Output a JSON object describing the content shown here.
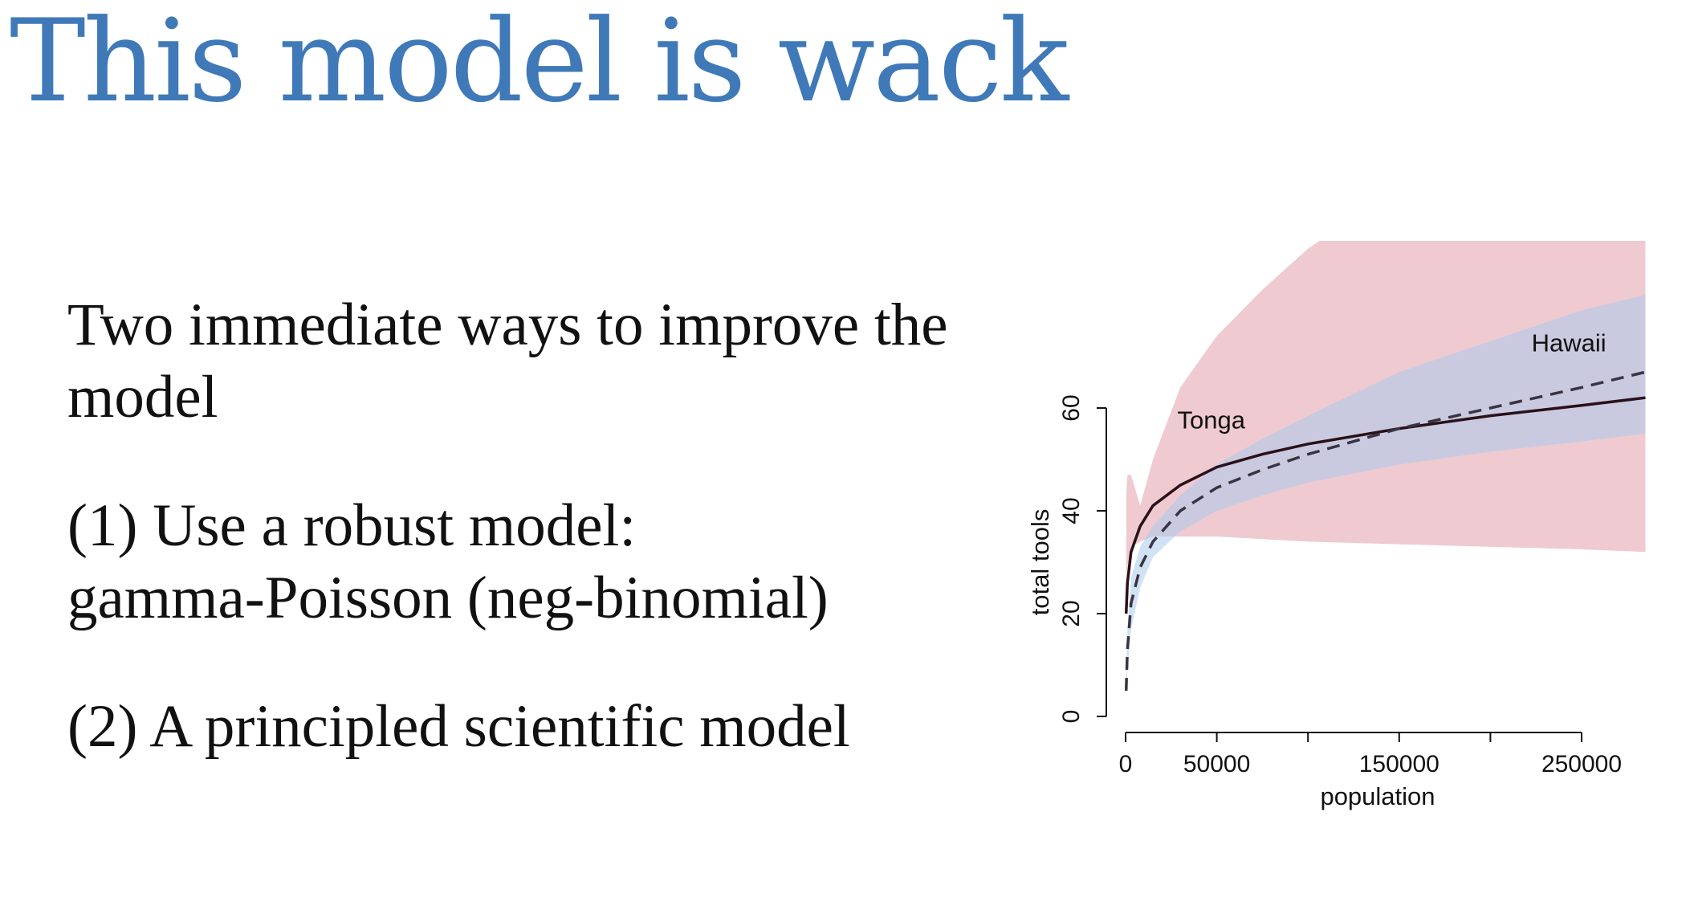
{
  "slide": {
    "title": "This model is wack",
    "bullets": [
      [
        "Two immediate ways to improve the",
        "model"
      ],
      [
        "(1) Use a robust model:",
        "gamma-Poisson (neg-binomial)"
      ],
      [
        "(2) A principled scientific model"
      ]
    ]
  },
  "chart_data": {
    "type": "line",
    "xlabel": "population",
    "ylabel": "total tools",
    "xlim": [
      0,
      285000
    ],
    "ylim": [
      0,
      60
    ],
    "x_ticks": [
      0,
      50000,
      100000,
      150000,
      200000,
      250000
    ],
    "x_tick_labels": [
      "0",
      "50000",
      "",
      "150000",
      "",
      "250000"
    ],
    "y_ticks": [
      0,
      20,
      40,
      60
    ],
    "y_tick_labels": [
      "0",
      "20",
      "40",
      "60"
    ],
    "grid": false,
    "annotations": [
      {
        "text": "Tonga",
        "x": 47000,
        "y": 56
      },
      {
        "text": "Hawaii",
        "x": 243000,
        "y": 71
      }
    ],
    "series": [
      {
        "style": "solid",
        "line_color": "#2a1018",
        "band_color": "#e8b4bc",
        "x": [
          300,
          1000,
          3000,
          8000,
          15000,
          30000,
          50000,
          75000,
          100000,
          150000,
          200000,
          250000,
          285000
        ],
        "y": [
          20,
          26,
          32,
          37,
          41,
          45,
          48.5,
          51,
          53,
          56,
          58.5,
          60.5,
          62
        ],
        "lower": [
          27,
          29,
          33,
          34,
          35,
          35,
          35,
          34.5,
          34,
          33.5,
          33,
          32.5,
          32
        ],
        "upper": [
          43,
          47,
          47,
          41,
          50,
          64,
          74,
          83,
          91,
          103,
          110,
          110,
          110
        ]
      },
      {
        "style": "dashed",
        "line_color": "#3a3442",
        "band_color": "#a9cbec",
        "x": [
          300,
          1000,
          3000,
          8000,
          15000,
          30000,
          50000,
          75000,
          100000,
          150000,
          200000,
          250000,
          285000
        ],
        "y": [
          5,
          13,
          22,
          29,
          34,
          40,
          44.5,
          48,
          51,
          56,
          60,
          64,
          67
        ],
        "lower": [
          4,
          9,
          17,
          25,
          31,
          36,
          40,
          43,
          45.5,
          49,
          51.5,
          53.5,
          55
        ],
        "upper": [
          6,
          17,
          27,
          33,
          37,
          43,
          49,
          54,
          58.5,
          67,
          73,
          79,
          82
        ]
      }
    ]
  }
}
